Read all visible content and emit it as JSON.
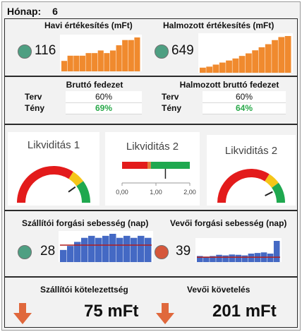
{
  "header": {
    "label": "Hónap:",
    "month": "6"
  },
  "sales": {
    "monthly": {
      "title": "Havi értékesítés (mFt)",
      "value": "116",
      "indicator_color": "#4e9f82",
      "bars": [
        2,
        3,
        3,
        3,
        3.5,
        3.5,
        4,
        3.5,
        4,
        5,
        6,
        6,
        6.5
      ]
    },
    "cumulative": {
      "title": "Halmozott értékesítés (mFt)",
      "value": "649",
      "indicator_color": "#4e9f82",
      "bars": [
        1,
        1.2,
        1.6,
        2,
        2.4,
        2.8,
        3.3,
        3.8,
        4.4,
        5,
        5.6,
        6.4,
        7,
        7.2
      ]
    },
    "bar_color": "#f08a2e"
  },
  "margin": {
    "gross": {
      "title": "Bruttó fedezet",
      "plan_label": "Terv",
      "plan_value": "60%",
      "actual_label": "Tény",
      "actual_value": "69%"
    },
    "cumulative_gross": {
      "title": "Halmozott bruttó fedezet",
      "plan_label": "Terv",
      "plan_value": "60%",
      "actual_label": "Tény",
      "actual_value": "64%"
    },
    "actual_color": "#2aa84a"
  },
  "liquidity": {
    "gauge1": {
      "title": "Likviditás 1",
      "needle": 0.8
    },
    "bullet": {
      "title": "Likviditás 2",
      "ticks": [
        "0,00",
        "1,00",
        "2,00"
      ],
      "marker": 1.28,
      "segments": [
        {
          "to": 0.75,
          "color": "#e31b1b"
        },
        {
          "to": 0.85,
          "color": "#e27a3a"
        },
        {
          "to": 2.0,
          "color": "#1fa84f"
        }
      ]
    },
    "gauge2": {
      "title": "Likviditás 2",
      "needle": 0.85
    },
    "colors": {
      "red": "#e31b1b",
      "yellow": "#f5c518",
      "green": "#1fa84f"
    }
  },
  "turnover": {
    "supplier": {
      "title": "Szállítói forgási sebesség (nap)",
      "value": "28",
      "indicator_color": "#4e9f82",
      "bars": [
        3,
        4,
        5,
        6,
        6.5,
        6,
        6.5,
        7,
        6,
        6.5,
        6,
        6.5,
        6
      ],
      "target": 4.2
    },
    "customer": {
      "title": "Vevői forgási sebesség (nap)",
      "value": "39",
      "indicator_color": "#d5573b",
      "bars": [
        2,
        1.8,
        2,
        2.4,
        2.2,
        2.5,
        2.4,
        2.2,
        2.8,
        3,
        3.2,
        2.8,
        7
      ],
      "target": 1.6
    },
    "bar_color": "#4469c4",
    "line_color": "#b21e1e"
  },
  "balance": {
    "payables": {
      "title": "Szállítói kötelezettség",
      "value": "75 mFt",
      "arrow": "down-arrow-icon"
    },
    "receivables": {
      "title": "Vevői követelés",
      "value": "201 mFt",
      "arrow": "down-arrow-icon"
    },
    "arrow_color": "#e0683c"
  }
}
